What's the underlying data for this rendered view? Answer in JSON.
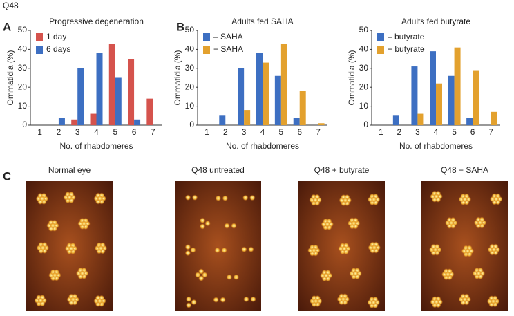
{
  "figure_label": "Q48",
  "panel_labels": [
    "A",
    "B",
    "C"
  ],
  "image_captions": [
    "Normal eye",
    "Q48 untreated",
    "Q48 + butyrate",
    "Q48 + SAHA"
  ],
  "chart_data": [
    {
      "type": "bar",
      "title": "Progressive degeneration",
      "xlabel": "No. of rhabdomeres",
      "ylabel": "Ommatidia (%)",
      "categories": [
        "1",
        "2",
        "3",
        "4",
        "5",
        "6",
        "7"
      ],
      "series": [
        {
          "name": "1 day",
          "color": "#d5534d",
          "values": [
            0,
            0,
            3,
            6,
            43,
            35,
            14
          ]
        },
        {
          "name": "6 days",
          "color": "#3d6fc2",
          "values": [
            0,
            4,
            30,
            38,
            25,
            3,
            0
          ]
        }
      ],
      "ylim": [
        0,
        50
      ],
      "yticks": [
        0,
        10,
        20,
        30,
        40,
        50
      ],
      "legend": "upper left"
    },
    {
      "type": "bar",
      "title": "Adults fed SAHA",
      "xlabel": "No. of rhabdomeres",
      "ylabel": "Ommatidia (%)",
      "categories": [
        "1",
        "2",
        "3",
        "4",
        "5",
        "6",
        "7"
      ],
      "series": [
        {
          "name": "– SAHA",
          "color": "#3d6fc2",
          "values": [
            0,
            5,
            30,
            38,
            26,
            4,
            0
          ]
        },
        {
          "name": "+ SAHA",
          "color": "#e3a12e",
          "values": [
            0,
            0,
            8,
            33,
            43,
            18,
            1
          ]
        }
      ],
      "ylim": [
        0,
        50
      ],
      "yticks": [
        0,
        10,
        20,
        30,
        40,
        50
      ],
      "legend": "upper left"
    },
    {
      "type": "bar",
      "title": "Adults fed butyrate",
      "xlabel": "No. of rhabdomeres",
      "ylabel": "Ommatidia (%)",
      "categories": [
        "1",
        "2",
        "3",
        "4",
        "5",
        "6",
        "7"
      ],
      "series": [
        {
          "name": "– butyrate",
          "color": "#3d6fc2",
          "values": [
            0,
            5,
            31,
            39,
            26,
            4,
            0
          ]
        },
        {
          "name": "+ butyrate",
          "color": "#e3a12e",
          "values": [
            0,
            0,
            6,
            22,
            41,
            29,
            7
          ]
        }
      ],
      "ylim": [
        0,
        50
      ],
      "yticks": [
        0,
        10,
        20,
        30,
        40,
        50
      ],
      "legend": "upper left"
    }
  ]
}
